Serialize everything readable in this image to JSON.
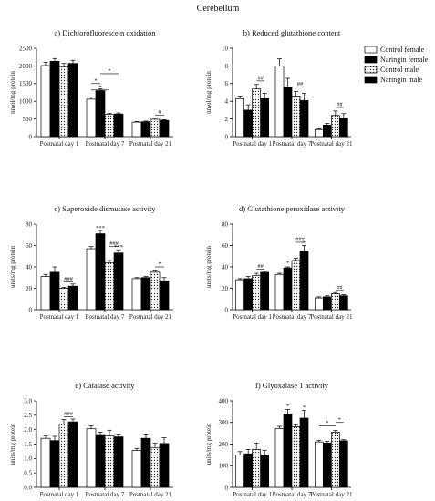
{
  "figure_title": "Cerebellum",
  "categories": [
    "Postnatal day 1",
    "Postnatal day 7",
    "Postnatal day 21"
  ],
  "legend": {
    "placement": "right",
    "entries": [
      {
        "label": "Control female",
        "pattern": "open"
      },
      {
        "label": "Naringin female",
        "pattern": "black"
      },
      {
        "label": "Control male",
        "pattern": "dotted"
      },
      {
        "label": "Naringin male",
        "pattern": "black"
      }
    ]
  },
  "chart_data": [
    {
      "type": "bar",
      "title": "a) Dichlorofluorescein oxidation",
      "ylabel": "nmol/mg protein",
      "ylim": [
        0,
        2500
      ],
      "yticks": [
        0,
        500,
        1000,
        1500,
        2000,
        2500
      ],
      "series": [
        {
          "name": "Control female",
          "values": [
            2010,
            1060,
            410
          ],
          "err": [
            90,
            60,
            20
          ]
        },
        {
          "name": "Naringin female",
          "values": [
            2130,
            1300,
            420
          ],
          "err": [
            80,
            50,
            20
          ]
        },
        {
          "name": "Control male",
          "values": [
            1980,
            630,
            490
          ],
          "err": [
            90,
            30,
            30
          ]
        },
        {
          "name": "Naringin male",
          "values": [
            2070,
            640,
            460
          ],
          "err": [
            90,
            30,
            20
          ]
        }
      ],
      "annotations": [
        {
          "group": 1,
          "from": 0,
          "to": 1,
          "text": "*",
          "level": 1500
        },
        {
          "group": 1,
          "from": 0,
          "to": 2,
          "text": "*",
          "level": 1320
        },
        {
          "group": 1,
          "from": 1,
          "to": 3,
          "text": "*",
          "level": 1780
        },
        {
          "group": 2,
          "from": 2,
          "to": 3,
          "text": "#",
          "level": 600
        }
      ]
    },
    {
      "type": "bar",
      "title": "b) Reduced glutathione content",
      "ylabel": "nmol/mg protein",
      "ylim": [
        0,
        10
      ],
      "yticks": [
        0,
        2,
        4,
        6,
        8,
        10
      ],
      "series": [
        {
          "name": "Control female",
          "values": [
            4.3,
            8.0,
            0.8
          ],
          "err": [
            0.3,
            0.8,
            0.1
          ]
        },
        {
          "name": "Naringin female",
          "values": [
            3.0,
            5.6,
            1.3
          ],
          "err": [
            0.6,
            1.0,
            0.2
          ]
        },
        {
          "name": "Control male",
          "values": [
            5.4,
            4.6,
            2.4
          ],
          "err": [
            0.5,
            0.5,
            0.5
          ]
        },
        {
          "name": "Naringin male",
          "values": [
            4.3,
            4.1,
            2.1
          ],
          "err": [
            0.6,
            0.8,
            0.5
          ]
        }
      ],
      "annotations": [
        {
          "group": 0,
          "from": 2,
          "to": 3,
          "text": "##",
          "level": 6.3
        },
        {
          "group": 1,
          "from": 2,
          "to": 3,
          "text": "##",
          "level": 5.6
        },
        {
          "group": 2,
          "from": 2,
          "to": 3,
          "text": "##",
          "level": 3.3
        }
      ]
    },
    {
      "type": "bar",
      "title": "c) Superoxide dismutase activity",
      "ylabel": "units/mg protein",
      "ylim": [
        0,
        80
      ],
      "yticks": [
        0,
        20,
        40,
        60,
        80
      ],
      "series": [
        {
          "name": "Control female",
          "values": [
            31,
            57,
            29
          ],
          "err": [
            2,
            2,
            1
          ]
        },
        {
          "name": "Naringin female",
          "values": [
            35,
            71,
            30
          ],
          "err": [
            5,
            3,
            1
          ]
        },
        {
          "name": "Control male",
          "values": [
            20,
            44,
            35
          ],
          "err": [
            1,
            2,
            2
          ]
        },
        {
          "name": "Naringin male",
          "values": [
            22,
            53,
            27
          ],
          "err": [
            2,
            3,
            3
          ]
        }
      ],
      "annotations": [
        {
          "group": 0,
          "from": 2,
          "to": 3,
          "text": "###",
          "level": 26
        },
        {
          "group": 1,
          "from": 2,
          "to": 3,
          "text": "###",
          "level": 59
        },
        {
          "group": 2,
          "from": 2,
          "to": 3,
          "text": "*",
          "level": 40
        },
        {
          "group": 1,
          "bar": 1,
          "text": "***",
          "level": 75
        },
        {
          "group": 1,
          "bar": 3,
          "text": "***",
          "level": 57
        }
      ]
    },
    {
      "type": "bar",
      "title": "d) Glutathione peroxidase activity",
      "ylabel": "units/mg protein",
      "ylim": [
        0,
        80
      ],
      "yticks": [
        0,
        20,
        40,
        60,
        80
      ],
      "series": [
        {
          "name": "Control female",
          "values": [
            28,
            33,
            11
          ],
          "err": [
            1,
            1,
            1
          ]
        },
        {
          "name": "Naringin female",
          "values": [
            29,
            39,
            12
          ],
          "err": [
            2,
            1,
            1
          ]
        },
        {
          "name": "Control male",
          "values": [
            32,
            46,
            15
          ],
          "err": [
            2,
            2,
            1
          ]
        },
        {
          "name": "Naringin male",
          "values": [
            35,
            55,
            13
          ],
          "err": [
            1,
            5,
            1
          ]
        }
      ],
      "annotations": [
        {
          "group": 0,
          "from": 2,
          "to": 3,
          "text": "##",
          "level": 38
        },
        {
          "group": 1,
          "from": 2,
          "to": 3,
          "text": "###",
          "level": 63
        },
        {
          "group": 2,
          "from": 2,
          "to": 3,
          "text": "##",
          "level": 18
        },
        {
          "group": 1,
          "bar": 1,
          "text": "*",
          "level": 42
        },
        {
          "group": 1,
          "bar": 3,
          "text": "*",
          "level": 61
        }
      ]
    },
    {
      "type": "bar",
      "title": "e) Catalase activity",
      "ylabel": "units/mg protein",
      "ylim": [
        0,
        3.0
      ],
      "yticks": [
        0,
        0.5,
        1.0,
        1.5,
        2.0,
        2.5,
        3.0
      ],
      "tickDecimals": 1,
      "series": [
        {
          "name": "Control female",
          "values": [
            1.7,
            2.03,
            1.28
          ],
          "err": [
            0.08,
            0.1,
            0.07
          ]
        },
        {
          "name": "Naringin female",
          "values": [
            1.62,
            1.83,
            1.7
          ],
          "err": [
            0.15,
            0.08,
            0.15
          ]
        },
        {
          "name": "Control male",
          "values": [
            2.2,
            1.78,
            1.38
          ],
          "err": [
            0.15,
            0.2,
            0.15
          ]
        },
        {
          "name": "Naringin male",
          "values": [
            2.27,
            1.75,
            1.52
          ],
          "err": [
            0.1,
            0.1,
            0.2
          ]
        }
      ],
      "annotations": [
        {
          "group": 0,
          "from": 2,
          "to": 3,
          "text": "###",
          "level": 2.45
        }
      ]
    },
    {
      "type": "bar",
      "title": "f) Glyoxalase 1 activity",
      "ylabel": "units/mg protein",
      "ylim": [
        0,
        400
      ],
      "yticks": [
        0,
        100,
        200,
        300,
        400
      ],
      "series": [
        {
          "name": "Control female",
          "values": [
            150,
            272,
            210
          ],
          "err": [
            15,
            10,
            8
          ]
        },
        {
          "name": "Naringin female",
          "values": [
            155,
            340,
            205
          ],
          "err": [
            20,
            20,
            8
          ]
        },
        {
          "name": "Control male",
          "values": [
            175,
            280,
            255
          ],
          "err": [
            30,
            10,
            8
          ]
        },
        {
          "name": "Naringin male",
          "values": [
            150,
            320,
            215
          ],
          "err": [
            20,
            35,
            5
          ]
        }
      ],
      "annotations": [
        {
          "group": 2,
          "from": 0,
          "to": 2,
          "text": "*",
          "level": 285
        },
        {
          "group": 2,
          "from": 2,
          "to": 3,
          "text": "*",
          "level": 300
        },
        {
          "group": 1,
          "bar": 1,
          "text": "*",
          "level": 368
        },
        {
          "group": 1,
          "bar": 3,
          "text": "*",
          "level": 362
        }
      ]
    }
  ]
}
